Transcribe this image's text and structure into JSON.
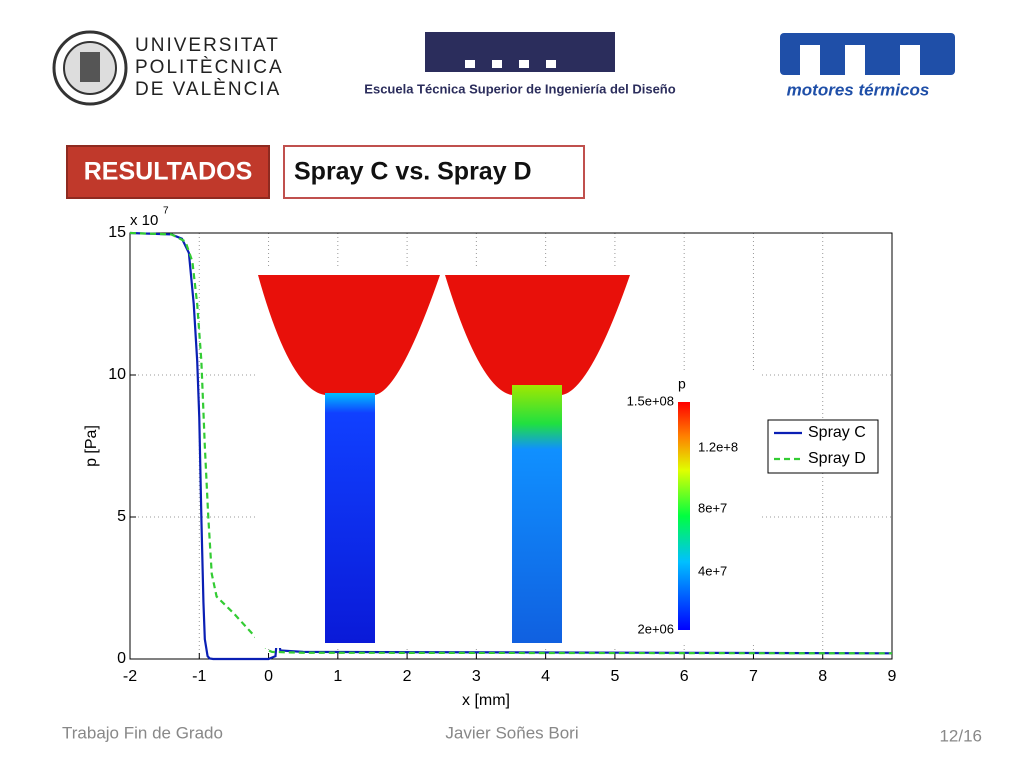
{
  "header": {
    "university": [
      "UNIVERSITAT",
      "POLITÈCNICA",
      "DE VALÈNCIA"
    ],
    "school": "Escuela Técnica Superior de Ingeniería del Diseño",
    "group": "motores térmicos"
  },
  "section": "RESULTADOS",
  "slide_title": "Spray C vs. Spray D",
  "chart_data": {
    "type": "line",
    "xlabel": "x [mm]",
    "ylabel": "p [Pa]",
    "y_multiplier": "x 10",
    "y_multiplier_exp": "7",
    "xlim": [
      -2,
      9
    ],
    "xticks": [
      -2,
      -1,
      0,
      1,
      2,
      3,
      4,
      5,
      6,
      7,
      8,
      9
    ],
    "ylim": [
      0,
      15
    ],
    "yticks": [
      0,
      5,
      10,
      15
    ],
    "grid": true,
    "legend": "right",
    "colorbar": {
      "title": "p",
      "labels": [
        "1.5e+08",
        "1.2e+8",
        "8e+7",
        "4e+7",
        "2e+06"
      ]
    },
    "series": [
      {
        "name": "Spray C",
        "color": "#0a1fb4",
        "dash": "solid",
        "x": [
          -2,
          -1.4,
          -1.25,
          -1.15,
          -1.08,
          -1.03,
          -1.0,
          -0.97,
          -0.94,
          -0.92,
          -0.88,
          -0.85,
          -0.8,
          0,
          0.1,
          0.13,
          0.17,
          0.5,
          9
        ],
        "values": [
          15,
          14.95,
          14.8,
          14.3,
          12.5,
          10.5,
          8.5,
          5,
          2,
          0.7,
          0.1,
          0.02,
          0,
          0,
          0.1,
          1.0,
          0.3,
          0.25,
          0.2
        ]
      },
      {
        "name": "Spray D",
        "color": "#33cc33",
        "dash": "dashed",
        "x": [
          -2,
          -1.4,
          -1.2,
          -1.1,
          -1.03,
          -0.97,
          -0.92,
          -0.87,
          -0.82,
          -0.75,
          -0.5,
          -0.2,
          0,
          0.05,
          0.5,
          9
        ],
        "values": [
          15,
          14.95,
          14.7,
          14.0,
          12.5,
          10.5,
          7.5,
          5,
          3,
          2.2,
          1.6,
          0.8,
          0.3,
          0.25,
          0.22,
          0.2
        ]
      }
    ]
  },
  "footer": {
    "left": "Trabajo Fin de Grado",
    "center": "Javier Soñes Bori",
    "right": "12/16"
  }
}
